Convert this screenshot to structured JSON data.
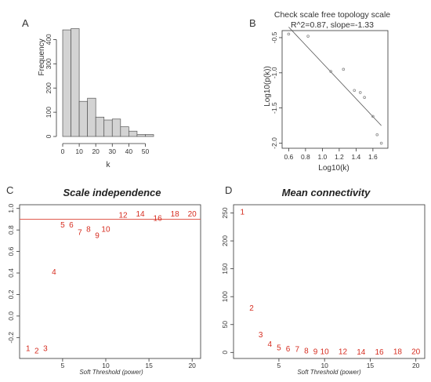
{
  "chart_data": [
    {
      "panel": "A",
      "type": "bar",
      "title": "",
      "xlabel": "k",
      "ylabel": "Frequency",
      "bin_edges": [
        0,
        5,
        10,
        15,
        20,
        25,
        30,
        35,
        40,
        45,
        50,
        55
      ],
      "values": [
        440,
        445,
        145,
        158,
        80,
        68,
        72,
        40,
        22,
        8,
        8
      ],
      "xlim": [
        0,
        55
      ],
      "ylim": [
        0,
        450
      ],
      "xticks": [
        0,
        10,
        20,
        30,
        40,
        50
      ],
      "yticks": [
        0,
        100,
        200,
        300,
        400
      ],
      "bar_color": "#d3d3d3"
    },
    {
      "panel": "B",
      "type": "scatter",
      "title": "Check scale free topology scale",
      "subtitle": "R^2=0.87, slope=-1.33",
      "xlabel": "Log10(k)",
      "ylabel": "Log10(p(k))",
      "x": [
        0.6,
        0.83,
        1.1,
        1.25,
        1.38,
        1.45,
        1.5,
        1.6,
        1.65,
        1.7
      ],
      "y": [
        -0.45,
        -0.48,
        -0.98,
        -0.95,
        -1.25,
        -1.28,
        -1.35,
        -1.62,
        -1.88,
        -2.0
      ],
      "fit_line": {
        "x": [
          0.6,
          1.7
        ],
        "y": [
          -0.35,
          -1.75
        ]
      },
      "xlim": [
        0.55,
        1.75
      ],
      "ylim": [
        -2.05,
        -0.4
      ],
      "xticks": [
        0.6,
        0.8,
        1.0,
        1.2,
        1.4,
        1.6
      ],
      "yticks": [
        -0.5,
        -1.0,
        -1.5,
        -2.0
      ],
      "point_color": "#888888"
    },
    {
      "panel": "C",
      "type": "scatter",
      "title": "Scale independence",
      "xlabel": "Soft Threshold (power)",
      "ylabel": "",
      "labels": [
        "1",
        "2",
        "3",
        "4",
        "5",
        "6",
        "7",
        "8",
        "9",
        "10",
        "12",
        "14",
        "16",
        "18",
        "20"
      ],
      "x": [
        1,
        2,
        3,
        4,
        5,
        6,
        7,
        8,
        9,
        10,
        12,
        14,
        16,
        18,
        20
      ],
      "y": [
        -0.3,
        -0.32,
        -0.3,
        0.41,
        0.85,
        0.85,
        0.78,
        0.81,
        0.75,
        0.81,
        0.94,
        0.95,
        0.91,
        0.95,
        0.95
      ],
      "hline": 0.9,
      "xlim": [
        0.2,
        20.8
      ],
      "ylim": [
        -0.38,
        1.02
      ],
      "xticks": [
        5,
        10,
        15,
        20
      ],
      "yticks": [
        -0.2,
        0.0,
        0.2,
        0.4,
        0.6,
        0.8,
        1.0
      ],
      "label_color": "#d62d20",
      "hline_color": "#e05a4e"
    },
    {
      "panel": "D",
      "type": "scatter",
      "title": "Mean connectivity",
      "xlabel": "Soft Threshold (power)",
      "ylabel": "",
      "labels": [
        "1",
        "2",
        "3",
        "4",
        "5",
        "6",
        "7",
        "8",
        "9",
        "10",
        "12",
        "14",
        "16",
        "18",
        "20"
      ],
      "x": [
        1,
        2,
        3,
        4,
        5,
        6,
        7,
        8,
        9,
        10,
        12,
        14,
        16,
        18,
        20
      ],
      "y": [
        252,
        80,
        32,
        15,
        9,
        7,
        6,
        3,
        2,
        2,
        2,
        1,
        1,
        2,
        2
      ],
      "xlim": [
        0.2,
        20.8
      ],
      "ylim": [
        -8,
        262
      ],
      "xticks": [
        5,
        10,
        15,
        20
      ],
      "yticks": [
        0,
        50,
        100,
        150,
        200,
        250
      ],
      "label_color": "#d62d20"
    }
  ],
  "panel_letters": [
    "A",
    "B",
    "C",
    "D"
  ]
}
